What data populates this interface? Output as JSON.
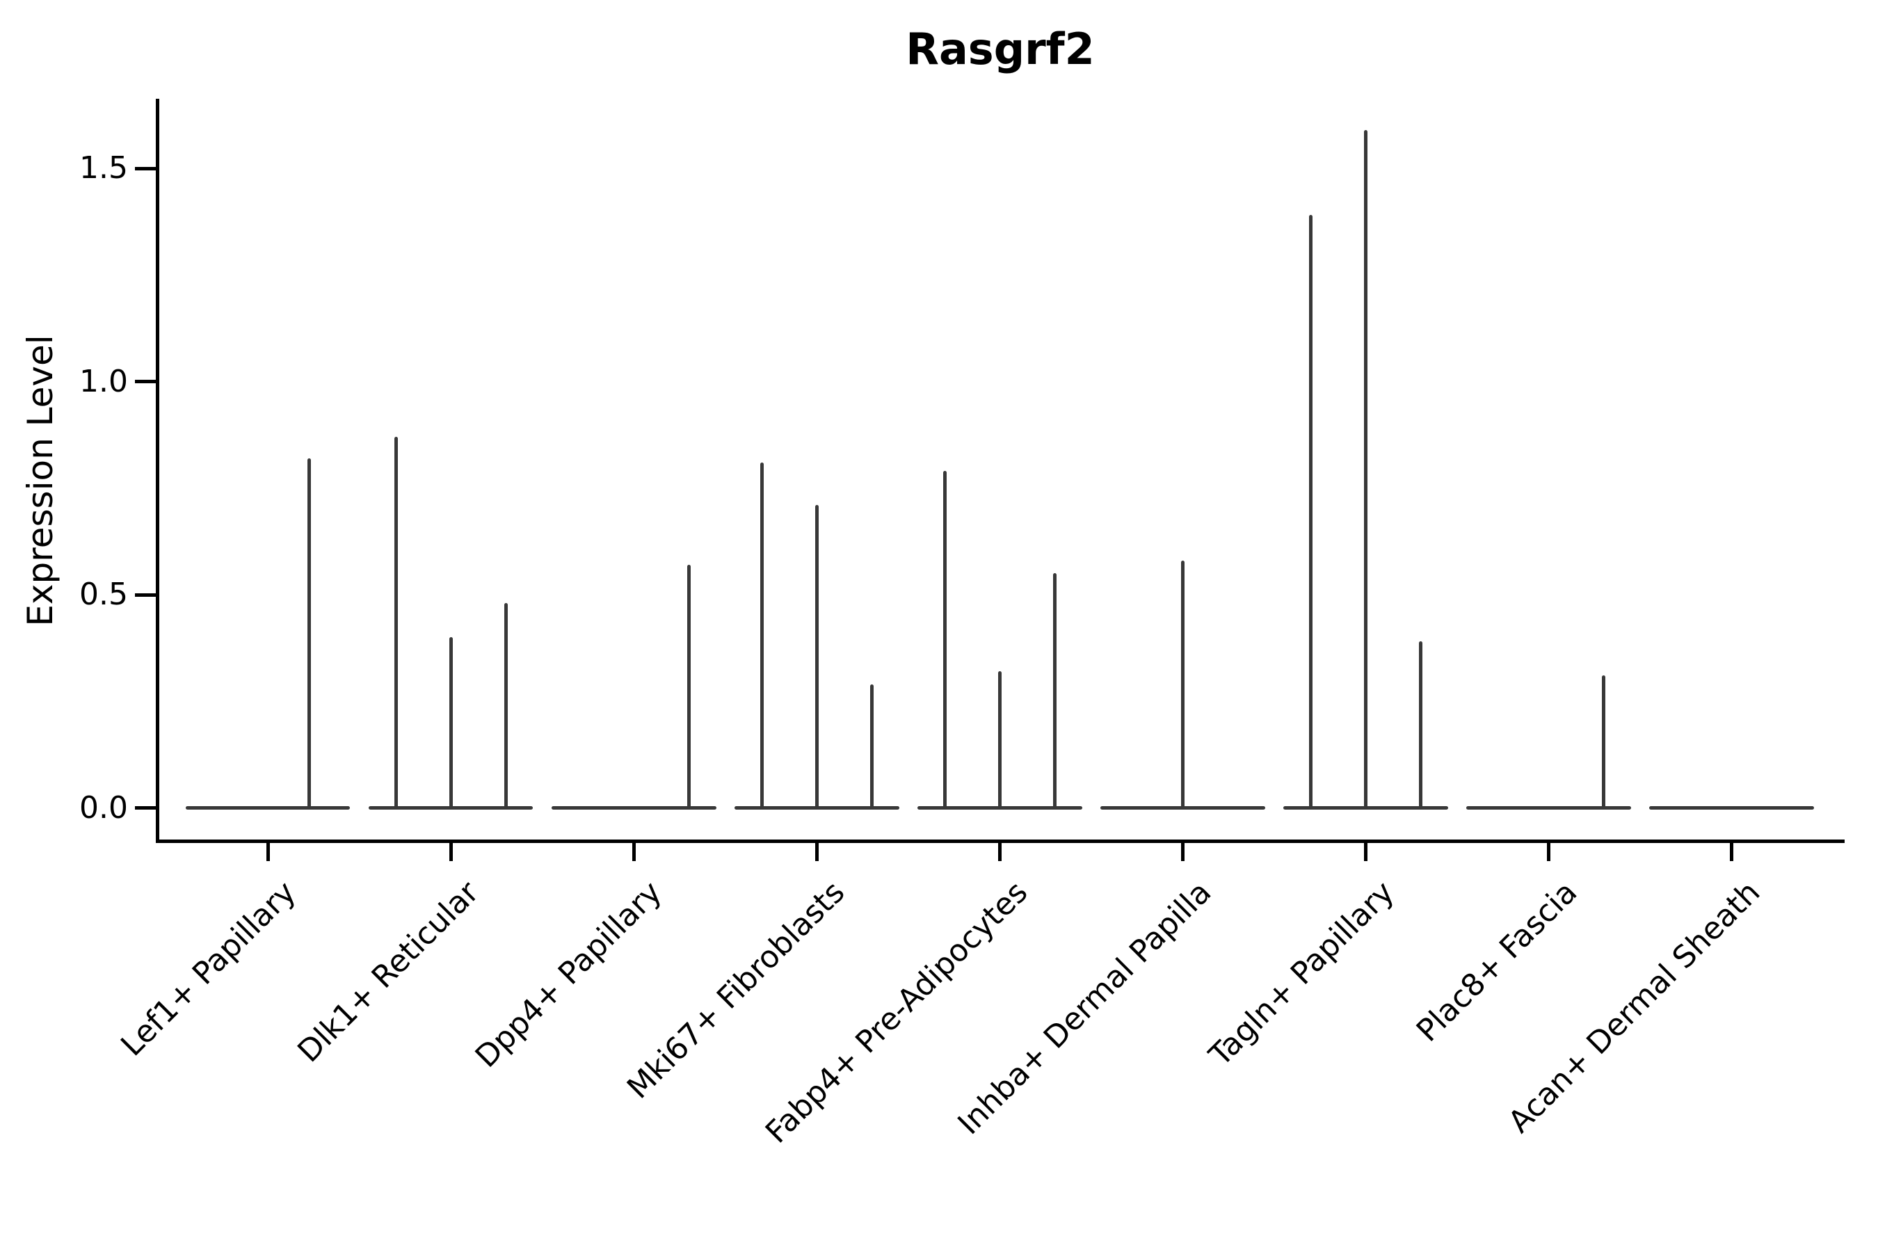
{
  "title": "Rasgrf2",
  "y_axis": {
    "label": "Expression Level"
  },
  "colors": {
    "violin": "#383838",
    "axis": "#000000",
    "text": "#000000"
  },
  "chart_data": {
    "type": "violin",
    "title": "Rasgrf2",
    "xlabel": "",
    "ylabel": "Expression Level",
    "ylim": [
      -0.08,
      1.66
    ],
    "yticks": [
      0.0,
      0.5,
      1.0,
      1.5
    ],
    "grid": false,
    "legend": "none",
    "description": "Collapsed (spike-like) violin plot of Rasgrf2 expression; each category holds dodged sub-violins flattened at 0 with thin density spikes reaching the maximum expression value.",
    "base_halfwidth_units": 0.45,
    "categories": [
      "Lef1+ Papillary",
      "Dlk1+ Reticular",
      "Dpp4+ Papillary",
      "Mki67+ Fibroblasts",
      "Fabp4+ Pre-Adipocytes",
      "Inhba+ Dermal Papilla",
      "Tagln+ Papillary",
      "Plac8+ Fascia",
      "Acan+ Dermal Sheath"
    ],
    "groups": [
      {
        "category": "Lef1+ Papillary",
        "n_slots": 2,
        "spikes": [
          {
            "slot": 1,
            "value": 0.82
          }
        ]
      },
      {
        "category": "Dlk1+ Reticular",
        "n_slots": 3,
        "spikes": [
          {
            "slot": 0,
            "value": 0.87
          },
          {
            "slot": 1,
            "value": 0.4
          },
          {
            "slot": 2,
            "value": 0.48
          }
        ]
      },
      {
        "category": "Dpp4+ Papillary",
        "n_slots": 3,
        "spikes": [
          {
            "slot": 2,
            "value": 0.57
          }
        ]
      },
      {
        "category": "Mki67+ Fibroblasts",
        "n_slots": 3,
        "spikes": [
          {
            "slot": 0,
            "value": 0.81
          },
          {
            "slot": 1,
            "value": 0.71
          },
          {
            "slot": 2,
            "value": 0.29
          }
        ]
      },
      {
        "category": "Fabp4+ Pre-Adipocytes",
        "n_slots": 3,
        "spikes": [
          {
            "slot": 0,
            "value": 0.79
          },
          {
            "slot": 1,
            "value": 0.32
          },
          {
            "slot": 2,
            "value": 0.55
          }
        ]
      },
      {
        "category": "Inhba+ Dermal Papilla",
        "n_slots": 3,
        "spikes": [
          {
            "slot": 1,
            "value": 0.58
          }
        ]
      },
      {
        "category": "Tagln+ Papillary",
        "n_slots": 3,
        "spikes": [
          {
            "slot": 0,
            "value": 1.39
          },
          {
            "slot": 1,
            "value": 1.59
          },
          {
            "slot": 2,
            "value": 0.39
          }
        ]
      },
      {
        "category": "Plac8+ Fascia",
        "n_slots": 3,
        "spikes": [
          {
            "slot": 2,
            "value": 0.31
          }
        ]
      },
      {
        "category": "Acan+ Dermal Sheath",
        "n_slots": 3,
        "spikes": []
      }
    ]
  }
}
